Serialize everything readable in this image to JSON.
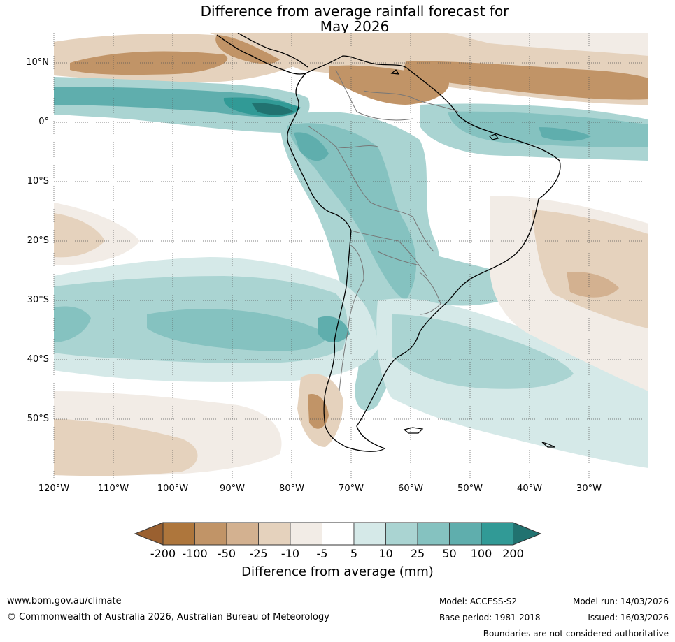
{
  "title": {
    "line1": "Difference from average rainfall forecast for",
    "line2": "May 2026"
  },
  "map": {
    "lat_labels": [
      "10°N",
      "0°",
      "10°S",
      "20°S",
      "30°S",
      "40°S",
      "50°S"
    ],
    "lon_labels": [
      "120°W",
      "110°W",
      "100°W",
      "90°W",
      "80°W",
      "70°W",
      "60°W",
      "50°W",
      "40°W",
      "30°W"
    ]
  },
  "legend": {
    "title": "Difference from average (mm)",
    "ticks": [
      "-200",
      "-100",
      "-50",
      "-25",
      "-10",
      "-5",
      "5",
      "10",
      "25",
      "50",
      "100",
      "200"
    ],
    "colors": [
      "#9a6030",
      "#ae763c",
      "#c19467",
      "#d3b190",
      "#e5d2bd",
      "#f2ece6",
      "#ffffff",
      "#d5e9e8",
      "#aad4d2",
      "#85c2c0",
      "#5faead",
      "#319a96",
      "#217270"
    ]
  },
  "footer": {
    "website": "www.bom.gov.au/climate",
    "copyright": "© Commonwealth of Australia 2026, Australian Bureau of Meteorology",
    "model": "Model: ACCESS-S2",
    "base_period": "Base period: 1981-2018",
    "model_run": "Model run: 14/03/2026",
    "issued": "Issued: 16/03/2026",
    "disclaimer": "Boundaries are not considered authoritative"
  }
}
